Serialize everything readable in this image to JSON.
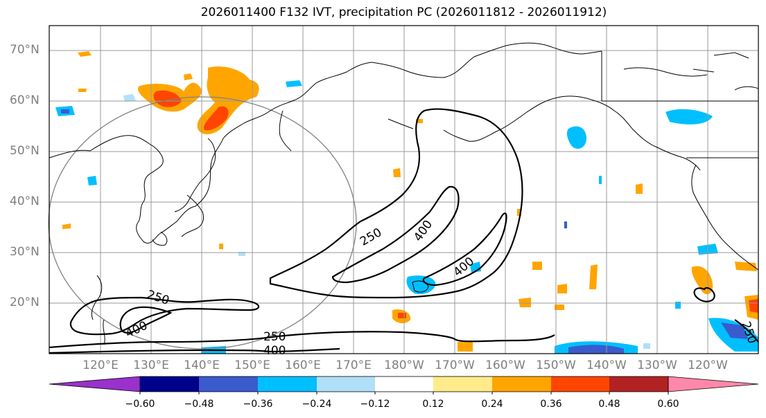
{
  "title": "2026011400 F132 IVT, precipitation PC (2026011812 - 2026011912)",
  "lat_labels": [
    "70°N",
    "60°N",
    "50°N",
    "40°N",
    "30°N",
    "20°N"
  ],
  "lon_labels": [
    "120°E",
    "130°E",
    "140°E",
    "150°E",
    "160°E",
    "170°E",
    "180°W",
    "170°W",
    "160°W",
    "150°W",
    "140°W",
    "130°W",
    "120°W"
  ],
  "ivt_contour_labels": {
    "east_250": "250",
    "east_400_upper": "400",
    "east_400_lower": "400",
    "west_250": "250",
    "west_400": "400",
    "south_250": "250",
    "south_400": "400",
    "se_250": "250"
  },
  "colorbar": {
    "ticks": [
      "−0.60",
      "−0.48",
      "−0.36",
      "−0.24",
      "−0.12",
      "0.12",
      "0.24",
      "0.36",
      "0.48",
      "0.60"
    ],
    "colors": [
      "#9932cc",
      "#00008b",
      "#3a5bcd",
      "#00bfff",
      "#b0e0f8",
      "#ffffff",
      "#ffeb8a",
      "#ffa500",
      "#ff4500",
      "#b22222",
      "#ff88aa"
    ]
  }
}
